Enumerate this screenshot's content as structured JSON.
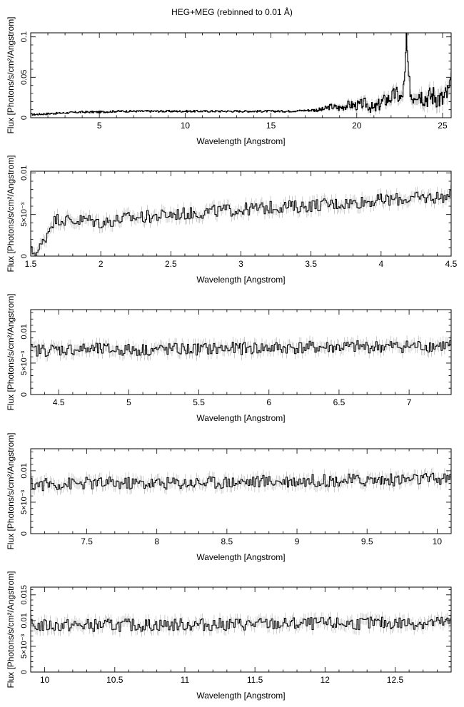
{
  "title": "HEG+MEG (rebinned to 0.01 Å)",
  "chart_data": [
    {
      "type": "line",
      "xlabel": "Wavelength [Angstrom]",
      "ylabel": "Flux [Photons/s/cm²/Angstrom]",
      "xlim": [
        1.0,
        25.5
      ],
      "ylim": [
        0,
        0.105
      ],
      "xticks": [
        {
          "v": 5,
          "label": "5"
        },
        {
          "v": 10,
          "label": "10"
        },
        {
          "v": 15,
          "label": "15"
        },
        {
          "v": 20,
          "label": "20"
        },
        {
          "v": 25,
          "label": "25"
        }
      ],
      "yticks": [
        {
          "v": 0,
          "label": "0"
        },
        {
          "v": 0.05,
          "label": "0.05"
        },
        {
          "v": 0.1,
          "label": "0.1"
        }
      ],
      "series": [
        {
          "x": [
            1.2,
            2,
            3,
            4,
            5,
            6,
            7,
            8,
            9,
            10,
            11,
            12,
            13,
            14,
            15,
            16,
            17,
            18,
            18.5,
            19,
            19.5,
            20,
            20.5,
            21,
            21.5,
            22,
            22.3,
            22.6,
            22.8,
            22.9,
            23.0,
            23.2,
            23.5,
            24,
            24.5,
            25,
            25.5
          ],
          "y": [
            0.004,
            0.005,
            0.006,
            0.007,
            0.007,
            0.008,
            0.008,
            0.008,
            0.008,
            0.008,
            0.008,
            0.008,
            0.008,
            0.008,
            0.008,
            0.008,
            0.009,
            0.01,
            0.014,
            0.012,
            0.016,
            0.015,
            0.018,
            0.01,
            0.02,
            0.025,
            0.03,
            0.022,
            0.045,
            0.104,
            0.05,
            0.025,
            0.032,
            0.025,
            0.028,
            0.022,
            0.036
          ]
        }
      ]
    },
    {
      "type": "line",
      "xlabel": "Wavelength [Angstrom]",
      "ylabel": "Flux [Photons/s/cm²/Angstrom]",
      "xlim": [
        1.5,
        4.5
      ],
      "ylim": [
        0,
        0.0102
      ],
      "xticks": [
        {
          "v": 1.5,
          "label": "1.5"
        },
        {
          "v": 2,
          "label": "2"
        },
        {
          "v": 2.5,
          "label": "2.5"
        },
        {
          "v": 3,
          "label": "3"
        },
        {
          "v": 3.5,
          "label": "3.5"
        },
        {
          "v": 4,
          "label": "4"
        },
        {
          "v": 4.5,
          "label": "4.5"
        }
      ],
      "yticks": [
        {
          "v": 0,
          "label": "0"
        },
        {
          "v": 0.005,
          "label": "5×10⁻³"
        },
        {
          "v": 0.01,
          "label": "0.01"
        }
      ],
      "series": [
        {
          "x": [
            1.55,
            1.6,
            1.65,
            1.7,
            1.8,
            1.9,
            2.0,
            2.1,
            2.2,
            2.3,
            2.4,
            2.5,
            2.6,
            2.7,
            2.8,
            2.9,
            3.0,
            3.1,
            3.2,
            3.3,
            3.4,
            3.5,
            3.6,
            3.7,
            3.8,
            3.9,
            4.0,
            4.1,
            4.2,
            4.3,
            4.4,
            4.5
          ],
          "y": [
            0.0005,
            0.002,
            0.004,
            0.0045,
            0.0042,
            0.0044,
            0.004,
            0.0043,
            0.0046,
            0.0047,
            0.0048,
            0.005,
            0.0051,
            0.0052,
            0.0054,
            0.0055,
            0.0056,
            0.0057,
            0.0058,
            0.006,
            0.0059,
            0.0061,
            0.0062,
            0.0063,
            0.0064,
            0.0066,
            0.0067,
            0.0068,
            0.0069,
            0.007,
            0.0071,
            0.0072
          ]
        }
      ]
    },
    {
      "type": "line",
      "xlabel": "Wavelength [Angstrom]",
      "ylabel": "Flux [Photons/s/cm²/Angstrom]",
      "xlim": [
        4.3,
        7.3
      ],
      "ylim": [
        0,
        0.0135
      ],
      "xticks": [
        {
          "v": 4.5,
          "label": "4.5"
        },
        {
          "v": 5,
          "label": "5"
        },
        {
          "v": 5.5,
          "label": "5.5"
        },
        {
          "v": 6,
          "label": "6"
        },
        {
          "v": 6.5,
          "label": "6.5"
        },
        {
          "v": 7,
          "label": "7"
        }
      ],
      "yticks": [
        {
          "v": 0,
          "label": "0"
        },
        {
          "v": 0.005,
          "label": "5×10⁻³"
        },
        {
          "v": 0.01,
          "label": "0.01"
        }
      ],
      "series": [
        {
          "x": [
            4.3,
            4.6,
            5.0,
            5.4,
            5.7,
            6.0,
            6.4,
            6.8,
            7.3
          ],
          "y": [
            0.007,
            0.0072,
            0.0071,
            0.0072,
            0.0073,
            0.0074,
            0.0075,
            0.0076,
            0.0078
          ]
        }
      ]
    },
    {
      "type": "line",
      "xlabel": "Wavelength [Angstrom]",
      "ylabel": "Flux [Photons/s/cm²/Angstrom]",
      "xlim": [
        7.1,
        10.1
      ],
      "ylim": [
        0,
        0.0135
      ],
      "xticks": [
        {
          "v": 7.5,
          "label": "7.5"
        },
        {
          "v": 8,
          "label": "8"
        },
        {
          "v": 8.5,
          "label": "8.5"
        },
        {
          "v": 9,
          "label": "9"
        },
        {
          "v": 9.5,
          "label": "9.5"
        },
        {
          "v": 10,
          "label": "10"
        }
      ],
      "yticks": [
        {
          "v": 0,
          "label": "0"
        },
        {
          "v": 0.005,
          "label": "5×10⁻³"
        },
        {
          "v": 0.01,
          "label": "0.01"
        }
      ],
      "series": [
        {
          "x": [
            7.1,
            7.5,
            8.0,
            8.5,
            9.0,
            9.5,
            10.1
          ],
          "y": [
            0.0078,
            0.008,
            0.008,
            0.0082,
            0.0084,
            0.0085,
            0.0087
          ]
        }
      ]
    },
    {
      "type": "line",
      "xlabel": "Wavelength [Angstrom]",
      "ylabel": "Flux [Photons/s/cm²/Angstrom]",
      "xlim": [
        9.9,
        12.9
      ],
      "ylim": [
        0,
        0.0165
      ],
      "xticks": [
        {
          "v": 10,
          "label": "10"
        },
        {
          "v": 10.5,
          "label": "10.5"
        },
        {
          "v": 11,
          "label": "11"
        },
        {
          "v": 11.5,
          "label": "11.5"
        },
        {
          "v": 12,
          "label": "12"
        },
        {
          "v": 12.5,
          "label": "12.5"
        }
      ],
      "yticks": [
        {
          "v": 0,
          "label": "0"
        },
        {
          "v": 0.005,
          "label": "5×10⁻³"
        },
        {
          "v": 0.01,
          "label": "0.01"
        },
        {
          "v": 0.015,
          "label": "0.015"
        }
      ],
      "series": [
        {
          "x": [
            9.9,
            10.5,
            11.0,
            11.5,
            12.0,
            12.5,
            12.9
          ],
          "y": [
            0.009,
            0.0091,
            0.0092,
            0.0093,
            0.0094,
            0.0095,
            0.0096
          ]
        }
      ]
    }
  ]
}
